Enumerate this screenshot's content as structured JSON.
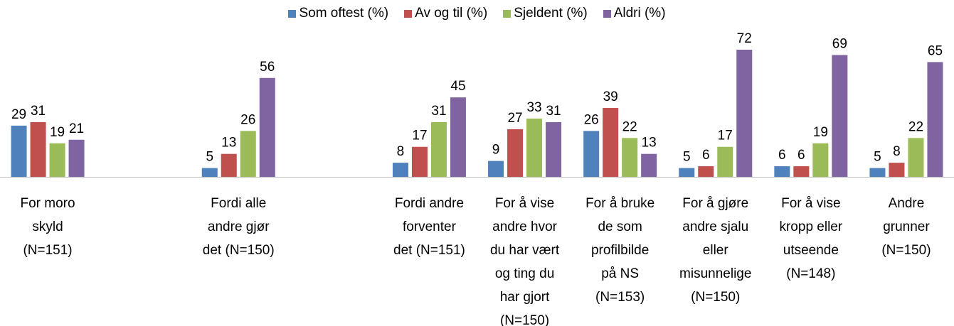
{
  "chart_data": {
    "type": "bar",
    "categories": [
      "For moro\nskyld\n(N=151)",
      null,
      "Fordi alle\nandre gjør\ndet (N=150)",
      null,
      "Fordi andre\nforventer\ndet (N=151)",
      "For å vise\nandre hvor\ndu har vært\nog ting du\nhar gjort\n(N=150)",
      "For å bruke\nde som\nprofilbilde\npå NS\n(N=153)",
      "For å gjøre\nandre sjalu\neller\nmisunnelige\n(N=150)",
      "For å vise\nkropp eller\nutseende\n(N=148)",
      "Andre\ngrunner\n(N=150)"
    ],
    "series": [
      {
        "name": "Som oftest (%)",
        "color": "#4f81bd",
        "values": [
          29,
          null,
          5,
          null,
          8,
          9,
          26,
          5,
          6,
          5
        ]
      },
      {
        "name": "Av og til (%)",
        "color": "#c0504d",
        "values": [
          31,
          null,
          13,
          null,
          17,
          27,
          39,
          6,
          6,
          8
        ]
      },
      {
        "name": "Sjeldent (%)",
        "color": "#9bbb59",
        "values": [
          19,
          null,
          26,
          null,
          31,
          33,
          22,
          17,
          19,
          22
        ]
      },
      {
        "name": "Aldri (%)",
        "color": "#8064a2",
        "values": [
          21,
          null,
          56,
          null,
          45,
          31,
          13,
          72,
          69,
          65
        ]
      }
    ],
    "legend": "top"
  }
}
